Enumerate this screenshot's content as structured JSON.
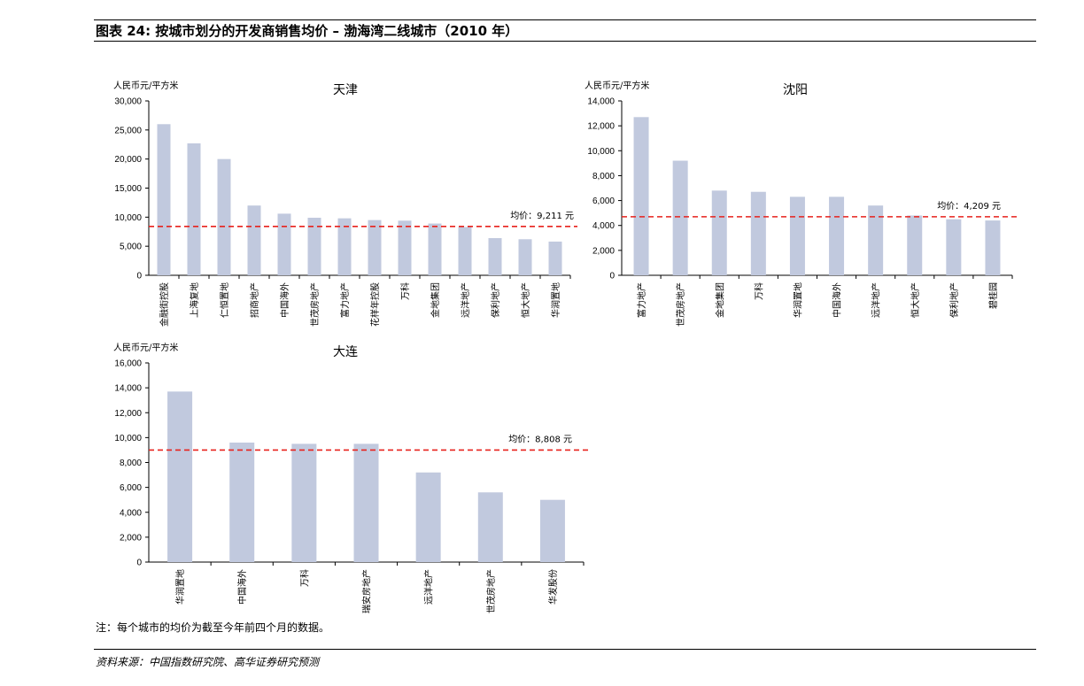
{
  "page": {
    "title": "图表 24: 按城市划分的开发商销售均价 – 渤海湾二线城市（2010 年）",
    "footnote": "注：每个城市的均价为截至今年前四个月的数据。",
    "source": "资料来源：中国指数研究院、高华证券研究预测"
  },
  "colors": {
    "bar": "#c1c9de",
    "avg_line": "#e8221c",
    "axis": "#000000"
  },
  "chart_data": [
    {
      "type": "bar",
      "title": "天津",
      "ylabel": "人民币元/平方米",
      "ylim": [
        0,
        30000
      ],
      "yticks": [
        "0",
        "5,000",
        "10,000",
        "15,000",
        "20,000",
        "25,000",
        "30,000"
      ],
      "ytick_values": [
        0,
        5000,
        10000,
        15000,
        20000,
        25000,
        30000
      ],
      "categories": [
        "金融街控股",
        "上海复地",
        "仁恒置地",
        "招商地产",
        "中国海外",
        "世茂房地产",
        "富力地产",
        "花样年控股",
        "万科",
        "金地集团",
        "远洋地产",
        "保利地产",
        "恒大地产",
        "华润置地"
      ],
      "values": [
        26000,
        22700,
        20000,
        12000,
        10600,
        9900,
        9800,
        9500,
        9400,
        8900,
        8300,
        6400,
        6200,
        5800
      ],
      "average": {
        "value": 9211,
        "label": "均价：9,211 元",
        "line_y": 8400
      }
    },
    {
      "type": "bar",
      "title": "沈阳",
      "ylabel": "人民币元/平方米",
      "ylim": [
        0,
        14000
      ],
      "yticks": [
        "0",
        "2,000",
        "4,000",
        "6,000",
        "8,000",
        "10,000",
        "12,000",
        "14,000"
      ],
      "ytick_values": [
        0,
        2000,
        4000,
        6000,
        8000,
        10000,
        12000,
        14000
      ],
      "categories": [
        "富力地产",
        "世茂房地产",
        "金地集团",
        "万科",
        "华润置地",
        "中国海外",
        "远洋地产",
        "恒大地产",
        "保利地产",
        "碧桂园"
      ],
      "values": [
        12700,
        9200,
        6800,
        6700,
        6300,
        6300,
        5600,
        4800,
        4500,
        4400
      ],
      "average": {
        "value": 4209,
        "label": "均价：4,209 元",
        "line_y": 4700
      }
    },
    {
      "type": "bar",
      "title": "大连",
      "ylabel": "人民币元/平方米",
      "ylim": [
        0,
        16000
      ],
      "yticks": [
        "0",
        "2,000",
        "4,000",
        "6,000",
        "8,000",
        "10,000",
        "12,000",
        "14,000",
        "16,000"
      ],
      "ytick_values": [
        0,
        2000,
        4000,
        6000,
        8000,
        10000,
        12000,
        14000,
        16000
      ],
      "categories": [
        "华润置地",
        "中国海外",
        "万科",
        "瑞安房地产",
        "远洋地产",
        "世茂房地产",
        "华发股份"
      ],
      "values": [
        13700,
        9600,
        9500,
        9500,
        7200,
        5600,
        5000
      ],
      "average": {
        "value": 8808,
        "label": "均价：8,808 元",
        "line_y": 9000
      }
    }
  ]
}
